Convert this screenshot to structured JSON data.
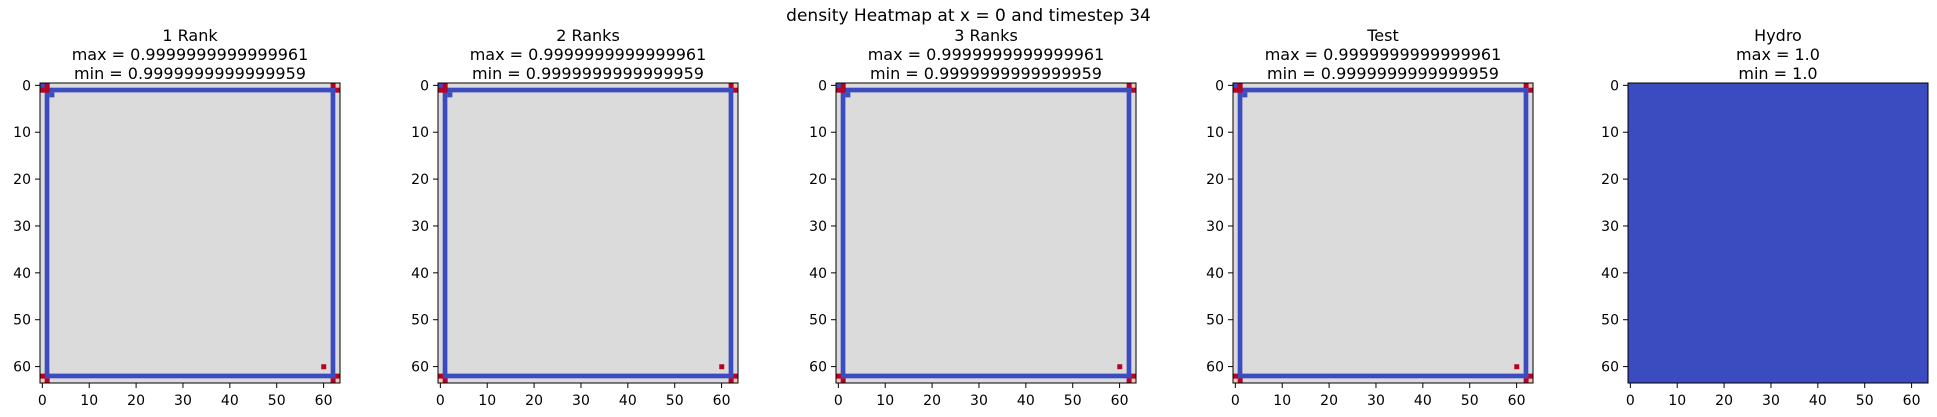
{
  "suptitle": "density Heatmap at x = 0 and timestep 34",
  "colors": {
    "interior": "#dcdbdb",
    "frame_line": "#3b4cc0",
    "hot": "#b40426",
    "corner_light": "#f2cbb7",
    "hydro_fill": "#3b4cc0"
  },
  "chart_data": [
    {
      "type": "heatmap",
      "title": "1 Rank",
      "max_label": "max = 0.9999999999999961",
      "min_label": "min = 0.9999999999999959",
      "grid_size": 64,
      "xticks": [
        0,
        10,
        20,
        30,
        40,
        50,
        60
      ],
      "yticks": [
        0,
        10,
        20,
        30,
        40,
        50,
        60
      ],
      "xlim": [
        -0.5,
        63.5
      ],
      "ylim": [
        63.5,
        -0.5
      ],
      "pattern": "frame"
    },
    {
      "type": "heatmap",
      "title": "2 Ranks",
      "max_label": "max = 0.9999999999999961",
      "min_label": "min = 0.9999999999999959",
      "grid_size": 64,
      "xticks": [
        0,
        10,
        20,
        30,
        40,
        50,
        60
      ],
      "yticks": [
        0,
        10,
        20,
        30,
        40,
        50,
        60
      ],
      "xlim": [
        -0.5,
        63.5
      ],
      "ylim": [
        63.5,
        -0.5
      ],
      "pattern": "frame"
    },
    {
      "type": "heatmap",
      "title": "3 Ranks",
      "max_label": "max = 0.9999999999999961",
      "min_label": "min = 0.9999999999999959",
      "grid_size": 64,
      "xticks": [
        0,
        10,
        20,
        30,
        40,
        50,
        60
      ],
      "yticks": [
        0,
        10,
        20,
        30,
        40,
        50,
        60
      ],
      "xlim": [
        -0.5,
        63.5
      ],
      "ylim": [
        63.5,
        -0.5
      ],
      "pattern": "frame"
    },
    {
      "type": "heatmap",
      "title": "Test",
      "max_label": "max = 0.9999999999999961",
      "min_label": "min = 0.9999999999999959",
      "grid_size": 64,
      "xticks": [
        0,
        10,
        20,
        30,
        40,
        50,
        60
      ],
      "yticks": [
        0,
        10,
        20,
        30,
        40,
        50,
        60
      ],
      "xlim": [
        -0.5,
        63.5
      ],
      "ylim": [
        63.5,
        -0.5
      ],
      "pattern": "frame"
    },
    {
      "type": "heatmap",
      "title": "Hydro",
      "max_label": "max = 1.0",
      "min_label": "min = 1.0",
      "grid_size": 64,
      "xticks": [
        0,
        10,
        20,
        30,
        40,
        50,
        60
      ],
      "yticks": [
        0,
        10,
        20,
        30,
        40,
        50,
        60
      ],
      "xlim": [
        -0.5,
        63.5
      ],
      "ylim": [
        63.5,
        -0.5
      ],
      "pattern": "uniform"
    }
  ]
}
